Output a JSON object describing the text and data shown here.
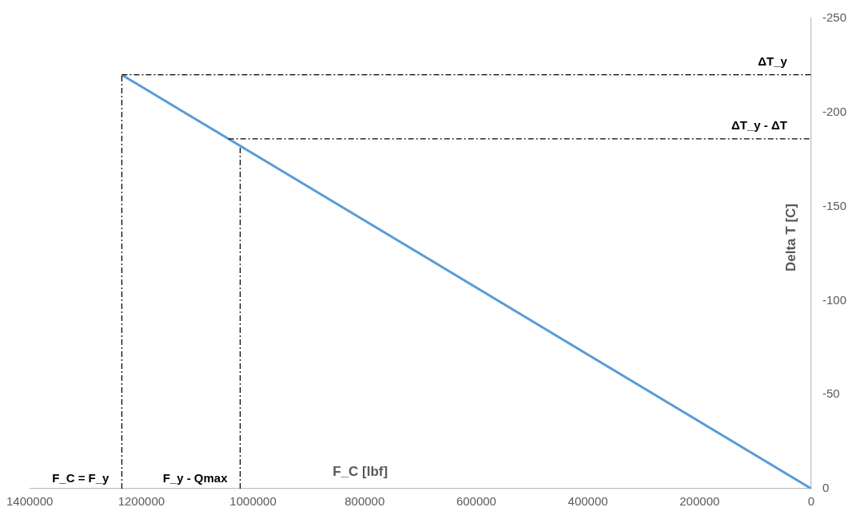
{
  "chart_data": {
    "type": "line",
    "xlabel": "F_C [lbf]",
    "ylabel": "Delta T [C]",
    "series": [
      {
        "color": "#5b9bd5",
        "x": [
          0,
          1235000
        ],
        "values": [
          0,
          -220
        ]
      }
    ],
    "xlim": [
      1400000,
      0
    ],
    "xticks": [
      1400000,
      1200000,
      1000000,
      800000,
      600000,
      400000,
      200000,
      0
    ],
    "ylim": [
      0,
      -250
    ],
    "yticks": [
      0,
      -50,
      -100,
      -150,
      -200,
      -250
    ],
    "ref_lines": [
      {
        "axis": "y",
        "value": -220,
        "label": "ΔT_y",
        "color": "#000000",
        "line_style": "dashed"
      },
      {
        "axis": "y",
        "value": -186,
        "label": "ΔT_y - ΔT",
        "color": "#000000",
        "line_style": "dashed"
      },
      {
        "axis": "x",
        "value": 1235000,
        "label": "F_C = F_y",
        "color": "#000000",
        "line_style": "dashed"
      },
      {
        "axis": "x",
        "value": 1023000,
        "label": "F_y - Qmax",
        "color": "#000000",
        "line_style": "dashed"
      }
    ],
    "grid": false,
    "legend": false,
    "marker": "none",
    "line_style": "solid"
  }
}
